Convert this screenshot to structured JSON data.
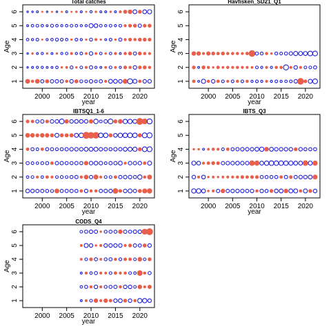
{
  "chart_data": {
    "type": "scatter",
    "subtype": "bubble-residuals",
    "positive_color": "#e8604c",
    "negative_color": "#1f1fd6",
    "panels": [
      {
        "title": "Total catches",
        "xlabel": "year",
        "ylabel": "Age",
        "xlim": [
          1996,
          2023
        ],
        "ylim": [
          0.5,
          6.5
        ],
        "xticks": [
          2000,
          2005,
          2010,
          2015,
          2020
        ],
        "yticks": [
          1,
          2,
          3,
          4,
          5,
          6
        ],
        "years": [
          1997,
          1998,
          1999,
          2000,
          2001,
          2002,
          2003,
          2004,
          2005,
          2006,
          2007,
          2008,
          2009,
          2010,
          2011,
          2012,
          2013,
          2014,
          2015,
          2016,
          2017,
          2018,
          2019,
          2020,
          2021,
          2022
        ],
        "residuals": {
          "1": [
            1.5,
            0.6,
            1.4,
            -0.8,
            1.0,
            -0.9,
            -0.9,
            -0.8,
            0.6,
            -1.0,
            1.0,
            -0.7,
            -0.6,
            -1.0,
            -0.6,
            -0.8,
            0.5,
            -1.2,
            -1.2,
            -1.0,
            1.6,
            -2.0,
            -1.3,
            0.7,
            -1.0,
            -1.0
          ],
          "2": [
            -0.2,
            -0.3,
            -0.4,
            -0.4,
            -0.3,
            -0.3,
            -0.5,
            0.3,
            0.4,
            -0.7,
            0.3,
            -0.6,
            0.5,
            -0.9,
            -0.4,
            -0.3,
            0.4,
            -0.6,
            0.4,
            -0.4,
            0.8,
            0.6,
            -1.0,
            0.8,
            0.9,
            0.6
          ],
          "3": [
            -0.2,
            0.3,
            -0.3,
            -0.4,
            0.3,
            -0.3,
            0.3,
            -0.4,
            -0.5,
            0.5,
            -0.4,
            -0.6,
            0.4,
            -1.0,
            0.4,
            -0.5,
            0.3,
            -0.5,
            0.5,
            -0.3,
            0.6,
            0.9,
            -0.8,
            0.9,
            0.6,
            0.5
          ],
          "4": [
            -0.5,
            -0.4,
            -0.6,
            0.2,
            -0.4,
            -0.5,
            -0.7,
            -0.6,
            -0.5,
            0.3,
            -0.6,
            -0.4,
            0.3,
            -0.7,
            0.5,
            0.3,
            -0.3,
            -0.6,
            0.3,
            -0.8,
            0.5,
            0.8,
            0.6,
            0.9,
            0.9,
            0.8
          ],
          "5": [
            -0.3,
            -0.5,
            -0.6,
            -0.5,
            -0.3,
            -0.7,
            -0.5,
            -0.4,
            -0.5,
            -0.6,
            -0.5,
            -0.4,
            -0.4,
            -1.3,
            -1.1,
            -0.6,
            -0.4,
            -0.6,
            -0.4,
            -0.6,
            0.5,
            0.8,
            0.9,
            -0.9,
            0.8,
            0.9
          ],
          "6": [
            -0.2,
            -0.2,
            -0.3,
            0.2,
            -0.2,
            0.2,
            -0.2,
            0.2,
            -0.3,
            0.2,
            0.3,
            -0.3,
            0.2,
            -0.4,
            0.3,
            -0.3,
            -0.3,
            0.3,
            -0.3,
            0.5,
            1.0,
            1.3,
            -1.2,
            0.9,
            -1.2,
            -1.4
          ]
        }
      },
      {
        "title": "Havfisken_SD21_Q1",
        "xlabel": "year",
        "ylabel": "Age",
        "xlim": [
          1996,
          2023
        ],
        "ylim": [
          0.5,
          6.5
        ],
        "xticks": [
          2000,
          2005,
          2010,
          2015,
          2020
        ],
        "yticks": [
          1,
          2,
          3,
          4,
          5,
          6
        ],
        "years": [
          1997,
          1998,
          1999,
          2000,
          2001,
          2002,
          2003,
          2004,
          2005,
          2006,
          2007,
          2008,
          2009,
          2010,
          2011,
          2012,
          2013,
          2014,
          2015,
          2016,
          2017,
          2018,
          2019,
          2020,
          2021,
          2022
        ],
        "residuals": {
          "1": [
            0.7,
            -0.3,
            -1.4,
            0.6,
            -1.0,
            0.7,
            -0.6,
            0.5,
            -0.6,
            0.6,
            -0.6,
            0.6,
            -0.4,
            -0.6,
            -0.4,
            0.5,
            -0.4,
            -0.6,
            -0.4,
            -0.5,
            -0.6,
            -1.0,
            3.0,
            0.8,
            -1.3,
            -1.8
          ],
          "2": [
            0.8,
            -0.3,
            0.9,
            0.6,
            0.3,
            0.7,
            0.4,
            0.6,
            0.5,
            0.6,
            0.5,
            0.5,
            0.4,
            -0.6,
            -0.4,
            0.5,
            -0.4,
            0.6,
            0.6,
            -2.0,
            0.5,
            -1.0,
            0.5,
            -0.6,
            -0.6,
            -0.8
          ],
          "3": [
            1.3,
            1.2,
            0.5,
            1.1,
            0.9,
            0.7,
            0.9,
            0.6,
            0.6,
            0.6,
            0.5,
            0.7,
            3.0,
            -0.8,
            -0.7,
            0.6,
            0.3,
            -0.7,
            -0.6,
            -0.8,
            -1.0,
            -1.4,
            -1.3,
            -1.3,
            -1.7,
            -1.8
          ]
        }
      },
      {
        "title": "IBTSQ1_1-6",
        "xlabel": "year",
        "ylabel": "Age",
        "xlim": [
          1996,
          2023
        ],
        "ylim": [
          0.5,
          6.5
        ],
        "xticks": [
          2000,
          2005,
          2010,
          2015,
          2020
        ],
        "yticks": [
          1,
          2,
          3,
          4,
          5,
          6
        ],
        "years": [
          1997,
          1998,
          1999,
          2000,
          2001,
          2002,
          2003,
          2004,
          2005,
          2006,
          2007,
          2008,
          2009,
          2010,
          2011,
          2012,
          2013,
          2014,
          2015,
          2016,
          2017,
          2018,
          2019,
          2020,
          2021,
          2022
        ],
        "residuals": {
          "1": [
            -1.1,
            -1.0,
            -0.9,
            -0.9,
            -0.8,
            -0.7,
            1.5,
            -0.8,
            -0.9,
            -0.9,
            -0.8,
            0.7,
            -1.0,
            0.6,
            0.6,
            -0.9,
            -1.0,
            -1.0,
            2.0,
            0.8,
            -1.0,
            -1.3,
            -0.9,
            1.0,
            1.6,
            1.8
          ],
          "2": [
            -0.5,
            -0.6,
            0.5,
            -0.5,
            0.7,
            0.5,
            -0.6,
            -0.7,
            -0.6,
            -0.8,
            -0.9,
            0.6,
            1.4,
            -0.9,
            1.6,
            0.5,
            -0.6,
            -0.6,
            0.7,
            -0.9,
            -1.0,
            -1.0,
            -0.8,
            -1.5,
            0.6,
            1.5
          ],
          "3": [
            -0.8,
            -0.6,
            -0.5,
            -0.7,
            -0.8,
            0.7,
            -0.9,
            -0.9,
            -0.8,
            -0.8,
            -0.9,
            -0.8,
            1.2,
            -1.0,
            -1.1,
            -1.0,
            -0.6,
            -0.9,
            -0.9,
            -1.2,
            0.5,
            -1.0,
            -0.9,
            -1.0,
            0.7,
            -1.3
          ],
          "4": [
            0.7,
            -0.8,
            -0.6,
            0.7,
            -0.8,
            -0.8,
            -0.7,
            -0.8,
            -0.9,
            -1.0,
            -1.0,
            -1.0,
            -1.2,
            -1.2,
            -1.3,
            -1.0,
            -0.9,
            -0.8,
            -1.0,
            -0.9,
            -1.2,
            -1.3,
            -1.4,
            1.0,
            -1.8,
            -1.9
          ],
          "5": [
            1.4,
            1.3,
            0.9,
            1.3,
            1.2,
            1.0,
            -1.3,
            1.0,
            1.0,
            1.1,
            -1.3,
            -1.6,
            3.3,
            3.0,
            3.0,
            -1.6,
            -1.6,
            1.0,
            -1.1,
            -1.5,
            -1.6,
            -1.7,
            -1.6,
            1.1,
            -1.9,
            -2.0
          ],
          "6": [
            0.8,
            0.7,
            -0.8,
            -0.9,
            0.8,
            -1.0,
            -1.0,
            -1.8,
            1.2,
            -1.0,
            -1.1,
            -1.1,
            -1.0,
            1.2,
            -1.6,
            -0.6,
            -1.0,
            -1.8,
            1.0,
            1.4,
            -1.5,
            -1.5,
            -1.3,
            3.2,
            2.2,
            -2.0
          ]
        }
      },
      {
        "title": "IBTS_Q3",
        "xlabel": "year",
        "ylabel": "Age",
        "xlim": [
          1996,
          2023
        ],
        "ylim": [
          0.5,
          6.5
        ],
        "xticks": [
          2000,
          2005,
          2010,
          2015,
          2020
        ],
        "yticks": [
          1,
          2,
          3,
          4,
          5,
          6
        ],
        "years": [
          1997,
          1998,
          1999,
          2000,
          2001,
          2002,
          2003,
          2004,
          2005,
          2006,
          2007,
          2008,
          2009,
          2010,
          2011,
          2012,
          2013,
          2014,
          2015,
          2016,
          2017,
          2018,
          2019,
          2020,
          2021,
          2022
        ],
        "residuals": {
          "1": [
            -1.5,
            -1.6,
            -1.2,
            0.3,
            0.5,
            -0.9,
            1.3,
            -0.9,
            -1.0,
            -1.0,
            -1.0,
            -0.9,
            -1.0,
            0.6,
            -1.0,
            -0.8,
            0.9,
            -1.1,
            -1.2,
            1.3,
            -1.3,
            -1.3,
            0.6,
            -1.3,
            0.9,
            -1.1
          ],
          "2": [
            -1.0,
            0.5,
            -1.1,
            0.3,
            0.4,
            0.3,
            0.4,
            0.5,
            0.5,
            0.6,
            0.8,
            0.7,
            0.8,
            0.8,
            -0.8,
            -0.8,
            -0.8,
            -0.8,
            0.7,
            -0.9,
            0.8,
            -0.9,
            -1.0,
            -1.0,
            -1.2,
            1.5
          ],
          "3": [
            -1.3,
            -1.1,
            0.5,
            0.7,
            0.9,
            0.8,
            -0.9,
            -1.0,
            -1.0,
            -1.1,
            -1.0,
            -1.0,
            2.0,
            1.8,
            -1.2,
            -1.5,
            -1.7,
            -1.6,
            -1.6,
            -1.5,
            -1.4,
            -1.2,
            -1.2,
            2.0,
            -1.3,
            1.7
          ],
          "4": [
            0.3,
            0.3,
            -0.3,
            0.4,
            0.6,
            0.5,
            -0.6,
            0.7,
            -0.8,
            -0.9,
            -1.0,
            -1.0,
            -1.0,
            -1.2,
            -1.5,
            1.4,
            -1.2,
            -1.0,
            -1.0,
            -1.0,
            -1.0,
            0.9,
            -1.0,
            -0.8,
            -0.8,
            -0.8
          ]
        }
      },
      {
        "title": "CODS_Q4",
        "xlabel": "year",
        "ylabel": "Age",
        "xlim": [
          1996,
          2023
        ],
        "ylim": [
          0.5,
          6.5
        ],
        "xticks": [
          2000,
          2005,
          2010,
          2015,
          2020
        ],
        "yticks": [
          1,
          2,
          3,
          4,
          5,
          6
        ],
        "years": [
          2008,
          2009,
          2010,
          2011,
          2012,
          2013,
          2014,
          2015,
          2016,
          2017,
          2018,
          2019,
          2020,
          2021,
          2022
        ],
        "residuals": {
          "1": [
            -0.3,
            0.4,
            -0.6,
            1.2,
            0.5,
            1.2,
            0.7,
            -1.0,
            -1.2,
            0.9,
            -1.0,
            0.6,
            -1.5,
            -1.5,
            -1.0
          ],
          "2": [
            -0.5,
            -0.8,
            0.6,
            -1.0,
            0.5,
            -0.7,
            -0.8,
            -0.9,
            0.6,
            -1.0,
            -1.0,
            -0.6,
            1.3,
            0.5,
            1.1
          ],
          "3": [
            -0.3,
            0.5,
            -0.5,
            -0.8,
            0.5,
            0.4,
            -0.6,
            0.7,
            0.5,
            0.6,
            -0.6,
            -0.5,
            2.0,
            0.6,
            -0.8
          ],
          "4": [
            0.4,
            -0.6,
            0.8,
            -0.8,
            0.4,
            -0.7,
            -0.8,
            0.6,
            -0.7,
            0.7,
            0.7,
            -0.6,
            1.3,
            -0.6,
            0.9
          ],
          "5": [
            0.4,
            -1.3,
            -1.0,
            0.3,
            0.5,
            -1.0,
            -1.0,
            -1.0,
            -1.0,
            0.5,
            0.8,
            -0.9,
            -0.8,
            1.0,
            -1.0
          ],
          "6": [
            -0.6,
            -0.8,
            -1.0,
            -0.9,
            0.3,
            -0.7,
            -0.8,
            -0.8,
            1.3,
            -0.9,
            -0.8,
            -1.0,
            -1.0,
            2.2,
            3.2
          ]
        }
      }
    ]
  }
}
